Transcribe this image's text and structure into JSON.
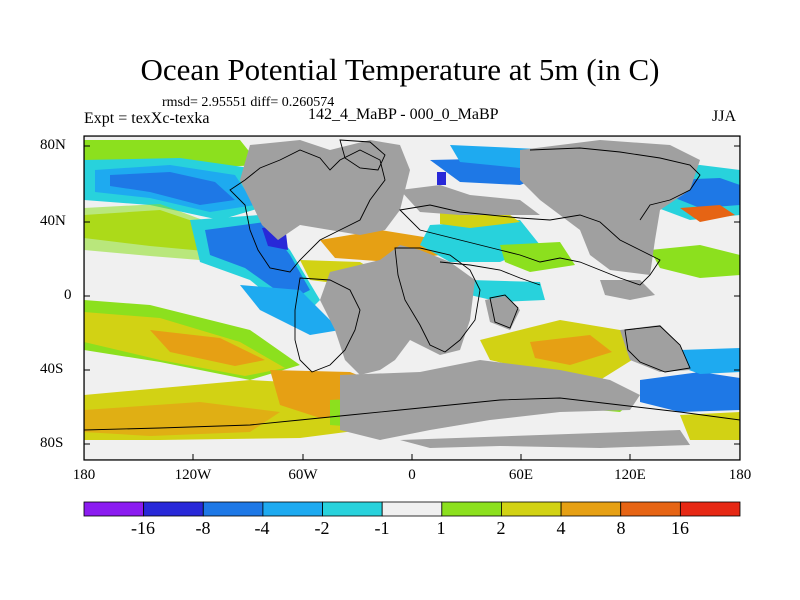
{
  "title": "Ocean Potential Temperature at 5m (in C)",
  "stats": "rmsd= 2.95551 diff= 0.260574",
  "experiment": "Expt = texXc-texka",
  "subtitle": "142_4_MaBP - 000_0_MaBP",
  "season": "JJA",
  "lat_ticks": [
    "80N",
    "40N",
    "0",
    "40S",
    "80S"
  ],
  "lon_ticks": [
    "180",
    "120W",
    "60W",
    "0",
    "60E",
    "120E",
    "180"
  ],
  "colorbar": {
    "labels": [
      "-16",
      "-8",
      "-4",
      "-2",
      "-1",
      "1",
      "2",
      "4",
      "8",
      "16"
    ],
    "colors": [
      "#8b1cf0",
      "#2828d8",
      "#1e78e6",
      "#1eaaf0",
      "#28d2dc",
      "#f0f0f0",
      "#8ce01e",
      "#d2d214",
      "#e6a014",
      "#e66414",
      "#e62814"
    ]
  },
  "colors": {
    "land": "#a0a0a0",
    "ocean_neutral": "#f0f0f0"
  }
}
